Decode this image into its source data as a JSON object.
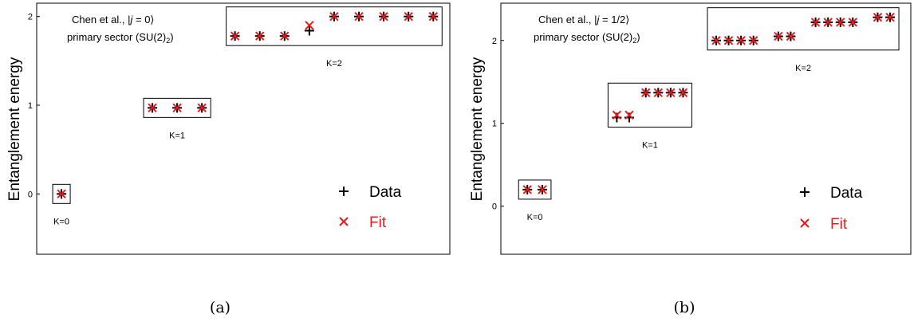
{
  "chart_data": [
    {
      "type": "scatter",
      "panel_label": "(a)",
      "ylabel": "Entanglement energy",
      "ylim": [
        -0.68,
        2.15
      ],
      "yticks": [
        0,
        1,
        2
      ],
      "annotation": {
        "line1_pre": "Chen et al., |",
        "line1_j": "j",
        "line1_post": " = 0⟩",
        "line2_pre": "primary sector (SU(2)",
        "line2_sub": "2",
        "line2_post": ")"
      },
      "groups": [
        {
          "label": "K=0",
          "x": [
            0.1
          ],
          "data": [
            0.0
          ],
          "fit": [
            0.0
          ]
        },
        {
          "label": "K=1",
          "x": [
            1.2,
            1.5,
            1.8
          ],
          "data": [
            0.97,
            0.97,
            0.97
          ],
          "fit": [
            0.97,
            0.97,
            0.97
          ]
        },
        {
          "label": "K=2",
          "x": [
            2.2,
            2.5,
            2.8,
            3.1,
            3.4,
            3.7,
            4.0,
            4.3,
            4.6
          ],
          "data": [
            1.78,
            1.78,
            1.78,
            1.84,
            2.0,
            2.0,
            2.0,
            2.0,
            2.0
          ],
          "fit": [
            1.78,
            1.78,
            1.78,
            1.9,
            2.0,
            2.0,
            2.0,
            2.0,
            2.0
          ]
        }
      ],
      "legend": [
        {
          "name": "Data",
          "marker": "plus",
          "color": "#000000"
        },
        {
          "name": "Fit",
          "marker": "cross",
          "color": "#e8191a"
        }
      ]
    },
    {
      "type": "scatter",
      "panel_label": "(b)",
      "ylabel": "Entanglement energy",
      "ylim": [
        -0.58,
        2.45
      ],
      "yticks": [
        0,
        1,
        2
      ],
      "annotation": {
        "line1_pre": "Chen et al., |",
        "line1_j": "j",
        "line1_post": " = 1/2⟩",
        "line2_pre": "primary sector (SU(2)",
        "line2_sub": "2",
        "line2_post": ")"
      },
      "groups": [
        {
          "label": "K=0",
          "x": [
            0.12,
            0.3
          ],
          "data": [
            0.2,
            0.2
          ],
          "fit": [
            0.2,
            0.2
          ]
        },
        {
          "label": "K=1",
          "x": [
            1.2,
            1.35,
            1.55,
            1.7,
            1.85,
            2.0
          ],
          "data": [
            1.07,
            1.07,
            1.37,
            1.37,
            1.37,
            1.37
          ],
          "fit": [
            1.1,
            1.1,
            1.37,
            1.37,
            1.37,
            1.37
          ]
        },
        {
          "label": "K=2",
          "x": [
            2.4,
            2.55,
            2.7,
            2.85,
            3.15,
            3.3,
            3.6,
            3.75,
            3.9,
            4.05,
            4.35,
            4.5
          ],
          "data": [
            2.0,
            2.0,
            2.0,
            2.0,
            2.05,
            2.05,
            2.22,
            2.22,
            2.22,
            2.22,
            2.28,
            2.28
          ],
          "fit": [
            2.0,
            2.0,
            2.0,
            2.0,
            2.05,
            2.05,
            2.22,
            2.22,
            2.22,
            2.22,
            2.28,
            2.28
          ]
        }
      ],
      "legend": [
        {
          "name": "Data",
          "marker": "plus",
          "color": "#000000"
        },
        {
          "name": "Fit",
          "marker": "cross",
          "color": "#e8191a"
        }
      ]
    }
  ]
}
